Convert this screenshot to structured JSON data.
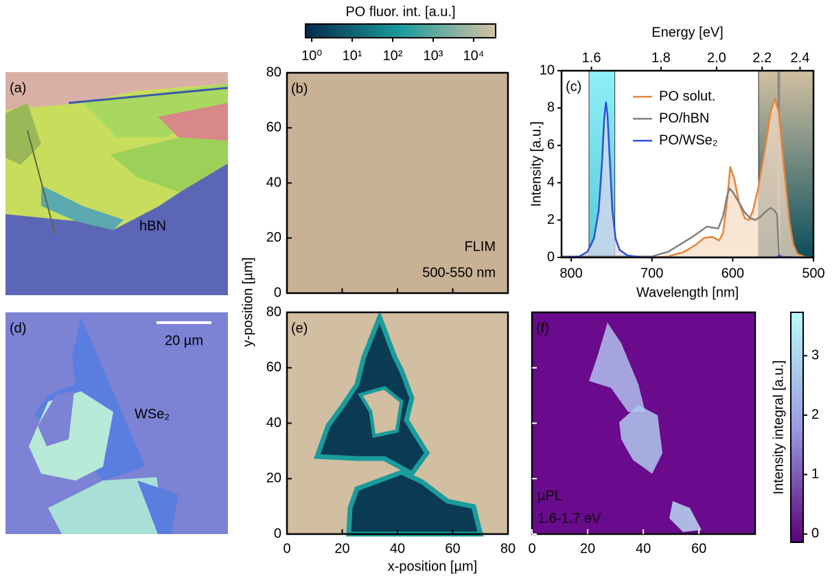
{
  "chart_data": [
    {
      "type": "image",
      "panel_label": "(a)",
      "annotations": [
        "hBN"
      ],
      "text_color": "#ffffff"
    },
    {
      "type": "map",
      "panel_label": "(b)",
      "annotations": [
        "FLIM",
        "500-550 nm"
      ],
      "xlim": [
        0,
        80
      ],
      "xticks": [
        0,
        20,
        40,
        60,
        80
      ],
      "xtick_labels": false,
      "ylim": [
        0,
        80
      ],
      "yticks": [
        0,
        20,
        40,
        60,
        80
      ],
      "background": "#c9b195",
      "colorbar": {
        "label": "PO fluor. int. [a.u.]",
        "position": "top",
        "log": true,
        "lim": [
          0.7,
          35000
        ],
        "ticks": [
          {
            "value": 1,
            "label": "10⁰"
          },
          {
            "value": 10,
            "label": "10¹"
          },
          {
            "value": 100,
            "label": "10²"
          },
          {
            "value": 1000,
            "label": "10³"
          },
          {
            "value": 10000,
            "label": "10⁴"
          }
        ],
        "colors": [
          "#062a4c",
          "#1a9c9c",
          "#d5c2a4"
        ]
      }
    },
    {
      "type": "line",
      "panel_label": "(c)",
      "xlabel": "Wavelength [nm]",
      "ylabel": "Intensity [a.u.]",
      "x2label": "Energy [eV]",
      "xlim": [
        812,
        500
      ],
      "xticks": [
        800,
        700,
        600,
        500
      ],
      "x2lim": [
        1.527,
        2.48
      ],
      "x2ticks": [
        1.6,
        1.8,
        {
          "value": 2,
          "label": "2.0"
        },
        2.2,
        2.4
      ],
      "ylim": [
        0,
        10
      ],
      "yticks": [
        0,
        2,
        4,
        6,
        8,
        10
      ],
      "legend": "upper right",
      "bands": [
        {
          "range": [
            778,
            746
          ],
          "colors": [
            "#8ff0f8",
            "#58c8d8"
          ]
        },
        {
          "range": [
            568,
            500
          ],
          "colors": [
            "#d3c0a2",
            "#0b4f5c"
          ]
        }
      ],
      "laser_line": {
        "x": 543,
        "color": "#8a8a8a"
      },
      "series": [
        {
          "name": "PO solut.",
          "color": "#e8843a",
          "fill": "#f7dcc4",
          "x": [
            812,
            700,
            680,
            660,
            645,
            635,
            625,
            617,
            612,
            607,
            603,
            598,
            592,
            585,
            580,
            575,
            568,
            560,
            553,
            548,
            543,
            537,
            530,
            525,
            520,
            510,
            500
          ],
          "values": [
            0,
            0,
            0.05,
            0.3,
            0.7,
            1.05,
            1.1,
            0.9,
            1.3,
            3.0,
            4.85,
            4.2,
            2.9,
            2.1,
            2.0,
            2.5,
            3.8,
            5.8,
            7.8,
            8.5,
            7.8,
            5.0,
            2.0,
            0.7,
            0.2,
            0.02,
            0
          ]
        },
        {
          "name": "PO/hBN",
          "color": "#808080",
          "x": [
            812,
            700,
            680,
            665,
            650,
            640,
            632,
            625,
            618,
            612,
            607,
            604,
            600,
            593,
            585,
            578,
            572,
            565,
            558,
            553,
            548,
            545,
            543,
            540,
            520,
            500
          ],
          "values": [
            0.05,
            0.05,
            0.3,
            0.7,
            1.1,
            1.4,
            1.65,
            1.6,
            1.55,
            2.2,
            3.3,
            3.7,
            3.5,
            3.0,
            2.4,
            2.1,
            2.0,
            2.2,
            2.5,
            2.65,
            2.5,
            2.3,
            0.2,
            0.05,
            0,
            0
          ]
        },
        {
          "name": "PO/WSe₂",
          "color": "#2a4fdc",
          "fill": "#ddd8ee",
          "x": [
            812,
            790,
            780,
            772,
            766,
            762,
            759,
            757,
            755,
            752,
            749,
            745,
            740,
            730,
            715,
            700,
            600,
            545,
            543,
            540,
            500
          ],
          "values": [
            0,
            0.05,
            0.3,
            1.0,
            2.5,
            5.0,
            7.5,
            8.3,
            7.6,
            5.0,
            2.5,
            1.0,
            0.4,
            0.1,
            0.02,
            0,
            0,
            0,
            0.1,
            0,
            0
          ]
        }
      ]
    },
    {
      "type": "image",
      "panel_label": "(d)",
      "annotations": [
        "WSe₂",
        "20 µm"
      ],
      "text_color": "#ffffff"
    },
    {
      "type": "map",
      "panel_label": "(e)",
      "xlabel": "x-position [µm]",
      "ylabel": "y-position [µm]",
      "xlim": [
        0,
        80
      ],
      "xticks": [
        0,
        20,
        40,
        60,
        80
      ],
      "ylim": [
        0,
        80
      ],
      "yticks": [
        0,
        20,
        40,
        60,
        80
      ],
      "background": "#d2bea0"
    },
    {
      "type": "map",
      "panel_label": "(f)",
      "annotations": [
        "µPL",
        "1.6-1.7 eV"
      ],
      "text_color": "#ffffff",
      "xlim": [
        0,
        80.2
      ],
      "xticks": [
        0,
        20,
        40,
        60
      ],
      "ylim": [
        0,
        80
      ],
      "yticks": [
        0,
        20,
        40,
        60
      ],
      "ytick_labels": false,
      "background": "#6a0a8c",
      "colorbar": {
        "label": "Intensity integral [a.u.]",
        "position": "right",
        "lim": [
          -0.14,
          3.73
        ],
        "ticks": [
          0,
          1,
          2,
          3
        ],
        "colors": [
          "#b8fafa",
          "#9a9ce0",
          "#5a0078"
        ]
      }
    }
  ]
}
